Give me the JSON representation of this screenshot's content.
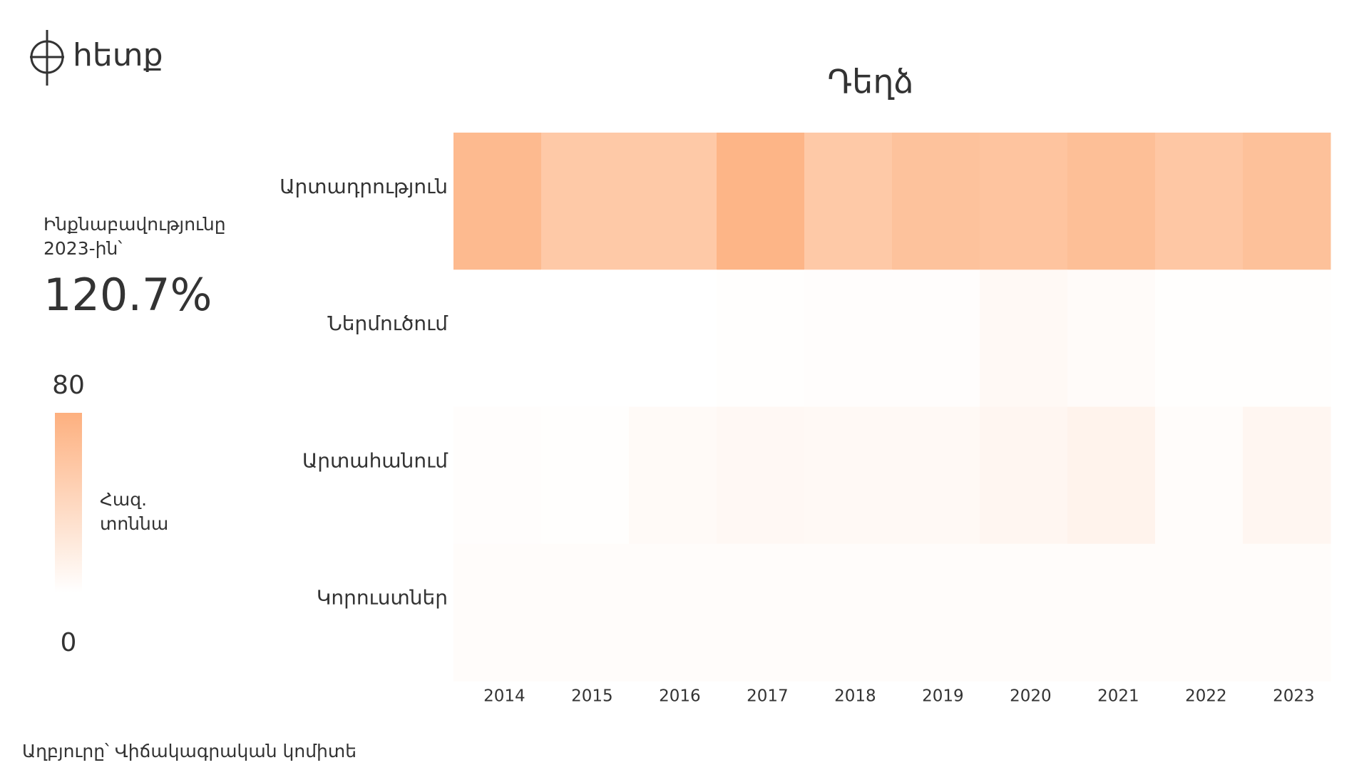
{
  "logo": "հետք",
  "source": "Աղբյուրը՝ Վիճակագրական կոմիտե",
  "chart_data": {
    "type": "heatmap",
    "title": "Դեղձ",
    "kpi_label": "Ինքնաբավությունը 2023-ին՝",
    "kpi": {
      "value": 120.7,
      "label": "120.7%"
    },
    "colorbar_label": "Հազ. տոննա",
    "clim": [
      0,
      80
    ],
    "cticks": [
      0,
      80
    ],
    "colors": [
      "#ffffff",
      "#fdb07f"
    ],
    "x": [
      "2014",
      "2015",
      "2016",
      "2017",
      "2018",
      "2019",
      "2020",
      "2021",
      "2022",
      "2023"
    ],
    "series": [
      {
        "name": "Արտադրություն",
        "values": [
          70,
          55,
          55,
          75,
          55,
          62,
          60,
          65,
          57,
          63
        ]
      },
      {
        "name": "Ներմուծում",
        "values": [
          0,
          0,
          0,
          1,
          2,
          2,
          6,
          4,
          1,
          1
        ]
      },
      {
        "name": "Արտահանում",
        "values": [
          2,
          1,
          5,
          7,
          6,
          6,
          9,
          12,
          3,
          9
        ]
      },
      {
        "name": "Կորուստներ",
        "values": [
          3,
          3,
          3,
          3,
          3,
          3,
          3,
          3,
          3,
          3
        ]
      }
    ]
  }
}
